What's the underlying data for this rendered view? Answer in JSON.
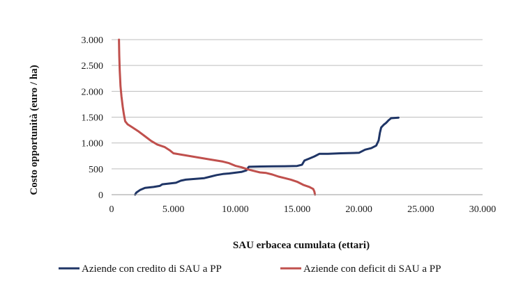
{
  "chart_data": {
    "type": "line",
    "title": "",
    "xlabel": "SAU  erbacea cumulata (ettari)",
    "ylabel": "Costo opportunità (euro / ha)",
    "xlim": [
      0,
      30000
    ],
    "ylim": [
      0,
      3000
    ],
    "x_ticks": [
      0,
      5000,
      10000,
      15000,
      20000,
      25000,
      30000
    ],
    "x_tick_labels": [
      "0",
      "5.000",
      "10.000",
      "15.000",
      "20.000",
      "25.000",
      "30.000"
    ],
    "y_ticks": [
      0,
      500,
      1000,
      1500,
      2000,
      2500,
      3000
    ],
    "y_tick_labels": [
      "0",
      "500",
      "1.000",
      "1.500",
      "2.000",
      "2.500",
      "3.000"
    ],
    "grid": "horizontal",
    "legend": "bottom",
    "series": [
      {
        "name": "Aziende con credito di SAU a PP",
        "color": "#1f3566",
        "points": [
          [
            1900,
            0
          ],
          [
            2000,
            40
          ],
          [
            2300,
            90
          ],
          [
            2700,
            130
          ],
          [
            3400,
            150
          ],
          [
            3900,
            170
          ],
          [
            4100,
            200
          ],
          [
            5200,
            230
          ],
          [
            5600,
            270
          ],
          [
            6000,
            290
          ],
          [
            7500,
            320
          ],
          [
            8000,
            350
          ],
          [
            8500,
            380
          ],
          [
            9000,
            400
          ],
          [
            9500,
            410
          ],
          [
            10500,
            440
          ],
          [
            10900,
            470
          ],
          [
            11100,
            540
          ],
          [
            12000,
            545
          ],
          [
            13000,
            548
          ],
          [
            14000,
            550
          ],
          [
            15000,
            555
          ],
          [
            15400,
            580
          ],
          [
            15600,
            660
          ],
          [
            16000,
            700
          ],
          [
            16400,
            740
          ],
          [
            16800,
            790
          ],
          [
            17500,
            790
          ],
          [
            18500,
            800
          ],
          [
            20000,
            810
          ],
          [
            20500,
            870
          ],
          [
            21000,
            900
          ],
          [
            21400,
            950
          ],
          [
            21600,
            1050
          ],
          [
            21700,
            1200
          ],
          [
            21800,
            1300
          ],
          [
            22000,
            1350
          ],
          [
            22200,
            1390
          ],
          [
            22400,
            1440
          ],
          [
            22600,
            1480
          ],
          [
            23200,
            1490
          ]
        ]
      },
      {
        "name": "Aziende con deficit di SAU a PP",
        "color": "#c0504d",
        "points": [
          [
            600,
            3000
          ],
          [
            620,
            2700
          ],
          [
            660,
            2400
          ],
          [
            720,
            2100
          ],
          [
            800,
            1900
          ],
          [
            900,
            1700
          ],
          [
            1000,
            1550
          ],
          [
            1100,
            1420
          ],
          [
            1300,
            1360
          ],
          [
            1700,
            1300
          ],
          [
            2200,
            1220
          ],
          [
            2700,
            1130
          ],
          [
            3200,
            1040
          ],
          [
            3700,
            970
          ],
          [
            4300,
            920
          ],
          [
            4700,
            860
          ],
          [
            5000,
            800
          ],
          [
            5500,
            780
          ],
          [
            6000,
            760
          ],
          [
            7000,
            720
          ],
          [
            8000,
            680
          ],
          [
            9000,
            640
          ],
          [
            9500,
            610
          ],
          [
            10000,
            560
          ],
          [
            10500,
            530
          ],
          [
            11000,
            490
          ],
          [
            11500,
            460
          ],
          [
            12000,
            430
          ],
          [
            12500,
            420
          ],
          [
            13000,
            390
          ],
          [
            13500,
            350
          ],
          [
            14000,
            320
          ],
          [
            14500,
            290
          ],
          [
            15000,
            250
          ],
          [
            15500,
            190
          ],
          [
            16000,
            150
          ],
          [
            16300,
            110
          ],
          [
            16400,
            60
          ],
          [
            16450,
            0
          ]
        ]
      }
    ]
  }
}
